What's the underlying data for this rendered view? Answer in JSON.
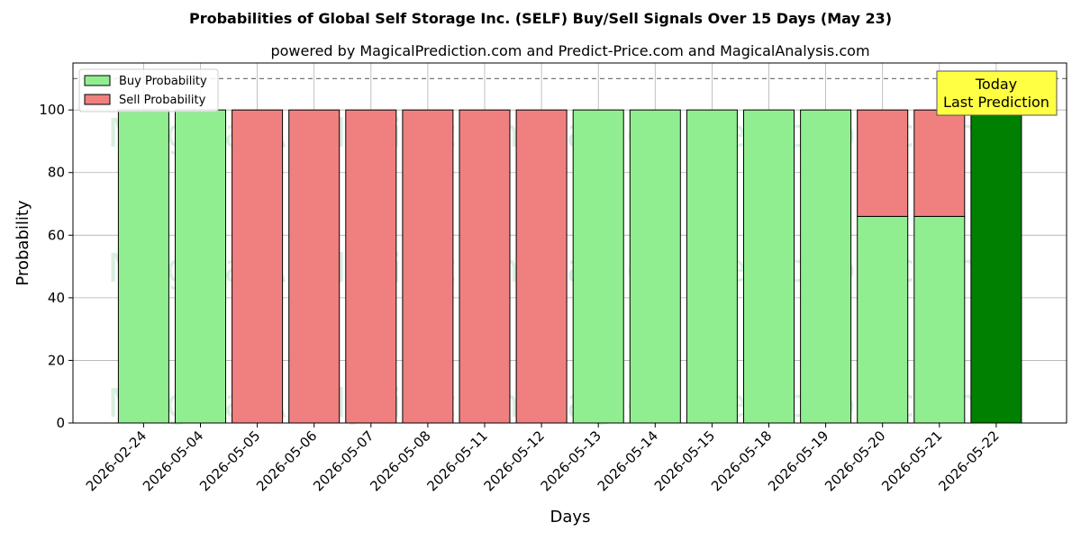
{
  "chart_data": {
    "type": "bar",
    "stacked": true,
    "title": "Probabilities of Global Self Storage Inc. (SELF) Buy/Sell Signals Over 15 Days (May 23)",
    "subtitle": "powered by MagicalPrediction.com and Predict-Price.com and MagicalAnalysis.com",
    "xlabel": "Days",
    "ylabel": "Probability",
    "ylim": [
      0,
      115
    ],
    "yticks": [
      0,
      20,
      40,
      60,
      80,
      100
    ],
    "grid": true,
    "legend_position": "top-left",
    "categories": [
      "2026-02-24",
      "2026-05-04",
      "2026-05-05",
      "2026-05-06",
      "2026-05-07",
      "2026-05-08",
      "2026-05-11",
      "2026-05-12",
      "2026-05-13",
      "2026-05-14",
      "2026-05-15",
      "2026-05-18",
      "2026-05-19",
      "2026-05-20",
      "2026-05-21",
      "2026-05-22"
    ],
    "series": [
      {
        "name": "Buy Probability",
        "color": "#90ee90",
        "values": [
          100,
          100,
          0,
          0,
          0,
          0,
          0,
          0,
          100,
          100,
          100,
          100,
          100,
          66,
          66,
          100
        ]
      },
      {
        "name": "Sell Probability",
        "color": "#f08080",
        "values": [
          0,
          0,
          100,
          100,
          100,
          100,
          100,
          100,
          0,
          0,
          0,
          0,
          0,
          34,
          34,
          0
        ]
      }
    ],
    "today_index": 15,
    "today_color": "#008000",
    "reference_line": 110,
    "annotation": {
      "lines": [
        "Today",
        "Last Prediction"
      ],
      "color": "#ffff44"
    },
    "watermarks": [
      "MagicalAnalysis.com",
      "MagicalPrediction.com"
    ]
  }
}
